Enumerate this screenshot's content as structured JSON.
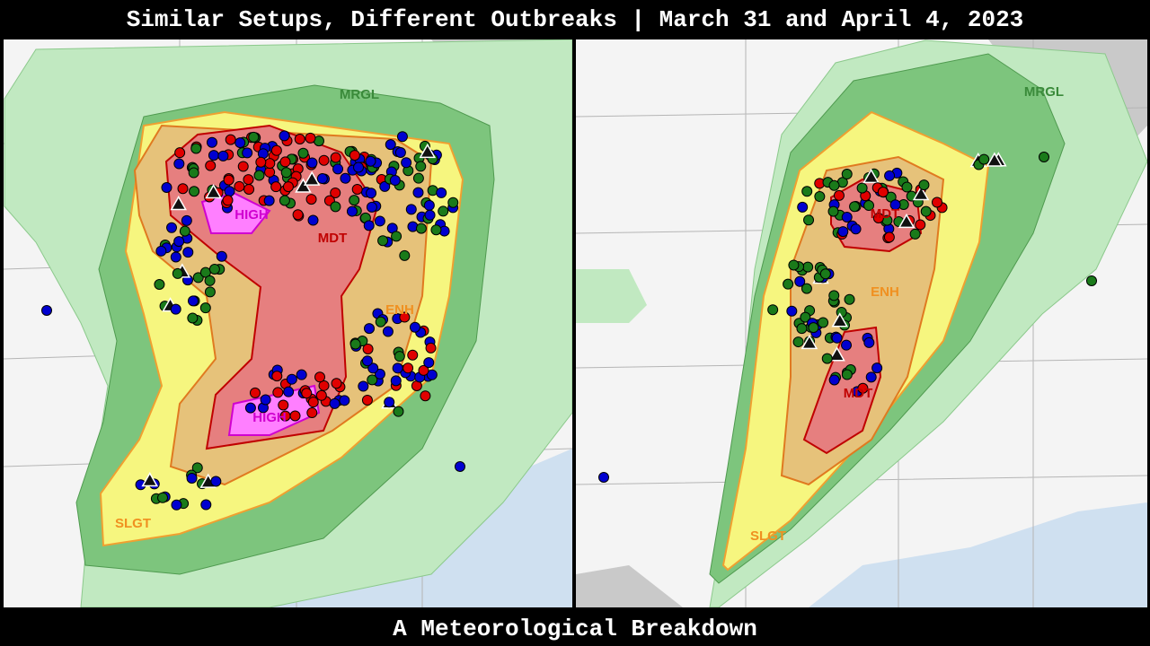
{
  "header": {
    "title": "Similar Setups, Different Outbreaks | March 31 and April 4, 2023"
  },
  "footer": {
    "subtitle": "A Meteorological Breakdown"
  },
  "maps": [
    {
      "labels": [
        "MRGL",
        "SLGT",
        "ENH",
        "MDT",
        "HIGH",
        "HIGH"
      ]
    },
    {
      "labels": [
        "MRGL",
        "SLGT",
        "ENH",
        "MDT",
        "MDT"
      ]
    }
  ]
}
